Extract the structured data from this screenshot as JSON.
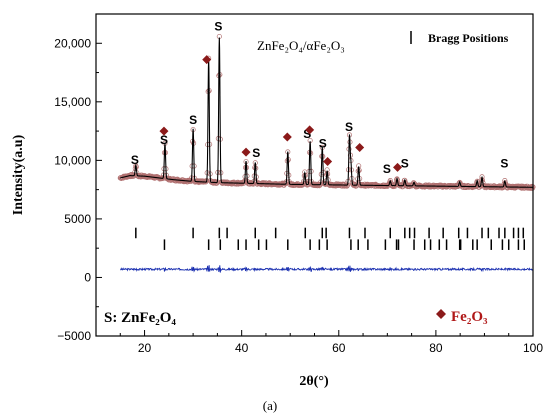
{
  "chart_data": {
    "type": "line",
    "xlabel": "2θ(°)",
    "ylabel": "Intensity(a.u)",
    "xlim": [
      10,
      100
    ],
    "ylim": [
      -5000,
      22500
    ],
    "x_ticks": [
      20,
      40,
      60,
      80,
      100
    ],
    "y_ticks": [
      -5000,
      0,
      5000,
      10000,
      15000,
      20000
    ],
    "y_tick_labels": [
      "−5000",
      "0",
      "5000",
      "10,000",
      "15,000",
      "20,000"
    ],
    "x_minor_step": 5,
    "y_minor_step": 2500,
    "grid": false,
    "colors": {
      "observed": "#b07070",
      "calculated": "#000000",
      "difference": "#1a2fb0",
      "bragg": "#000000",
      "fe_marker": "#8b1a1a",
      "fe_text": "#b01818"
    },
    "annotation": "ZnFe₂O₄/αFe₂O₃",
    "legend": {
      "label": "Bragg Positions",
      "placement": "top-right"
    },
    "key_s": "S: ZnFe₂O₄",
    "key_fe": "Fe₂O₃",
    "background_points": [
      [
        15,
        8500
      ],
      [
        17,
        8700
      ],
      [
        20,
        8650
      ],
      [
        23,
        8500
      ],
      [
        26,
        8350
      ],
      [
        30,
        8200
      ],
      [
        35,
        8100
      ],
      [
        40,
        8050
      ],
      [
        50,
        7950
      ],
      [
        60,
        7900
      ],
      [
        70,
        7850
      ],
      [
        80,
        7800
      ],
      [
        90,
        7750
      ],
      [
        100,
        7700
      ]
    ],
    "zn_peaks": [
      {
        "pos": 18.2,
        "height": 900
      },
      {
        "pos": 30.0,
        "height": 4500
      },
      {
        "pos": 35.4,
        "height": 12400
      },
      {
        "pos": 42.8,
        "height": 1800
      },
      {
        "pos": 53.0,
        "height": 1000
      },
      {
        "pos": 56.6,
        "height": 3200
      },
      {
        "pos": 62.2,
        "height": 4200
      },
      {
        "pos": 70.6,
        "height": 400
      },
      {
        "pos": 73.6,
        "height": 500
      },
      {
        "pos": 89.5,
        "height": 800
      },
      {
        "pos": 94.2,
        "height": 500
      }
    ],
    "fe_peaks": [
      {
        "pos": 24.2,
        "height": 3000
      },
      {
        "pos": 33.2,
        "height": 10500
      },
      {
        "pos": 40.9,
        "height": 1900
      },
      {
        "pos": 49.5,
        "height": 2800
      },
      {
        "pos": 54.1,
        "height": 3700
      },
      {
        "pos": 57.6,
        "height": 1200
      },
      {
        "pos": 62.5,
        "height": 1800
      },
      {
        "pos": 64.1,
        "height": 1600
      },
      {
        "pos": 72.0,
        "height": 600
      },
      {
        "pos": 75.5,
        "height": 300
      },
      {
        "pos": 84.9,
        "height": 400
      },
      {
        "pos": 88.5,
        "height": 500
      }
    ],
    "s_labels": [
      {
        "x": 18.0,
        "y": 9700,
        "text": "S"
      },
      {
        "x": 24.0,
        "y": 11400,
        "text": "S"
      },
      {
        "x": 30.0,
        "y": 13100,
        "text": "S"
      },
      {
        "x": 35.2,
        "y": 21100,
        "text": "S"
      },
      {
        "x": 43.0,
        "y": 10300,
        "text": "S"
      },
      {
        "x": 53.5,
        "y": 11900,
        "text": "S"
      },
      {
        "x": 56.7,
        "y": 11100,
        "text": "S"
      },
      {
        "x": 62.1,
        "y": 12500,
        "text": "S"
      },
      {
        "x": 69.9,
        "y": 8900,
        "text": "S"
      },
      {
        "x": 73.6,
        "y": 9400,
        "text": "S"
      },
      {
        "x": 94.1,
        "y": 9400,
        "text": "S"
      }
    ],
    "fe_markers": [
      {
        "x": 24.0,
        "y": 12500
      },
      {
        "x": 32.8,
        "y": 18600
      },
      {
        "x": 40.9,
        "y": 10700
      },
      {
        "x": 49.4,
        "y": 12000
      },
      {
        "x": 54.0,
        "y": 12600
      },
      {
        "x": 57.7,
        "y": 9900
      },
      {
        "x": 64.3,
        "y": 11100
      },
      {
        "x": 72.1,
        "y": 9400
      }
    ],
    "bragg_row1": [
      18.2,
      30.0,
      35.4,
      37.0,
      42.8,
      47.0,
      53.1,
      56.6,
      57.4,
      62.2,
      65.4,
      70.6,
      73.6,
      74.6,
      75.6,
      78.6,
      81.5,
      84.7,
      86.5,
      89.5,
      90.8,
      93.0,
      94.2,
      96.0,
      97.0,
      98.0
    ],
    "bragg_row2": [
      24.1,
      33.2,
      35.6,
      39.3,
      40.9,
      43.5,
      45.1,
      49.5,
      54.1,
      56.0,
      57.6,
      62.5,
      64.0,
      66.0,
      69.6,
      71.9,
      72.3,
      75.5,
      77.7,
      78.9,
      80.7,
      82.2,
      84.9,
      85.1,
      87.6,
      88.5,
      91.4,
      93.7,
      95.0,
      97.0,
      98.2
    ],
    "bragg_row1_y": 3800,
    "bragg_row2_y": 2800,
    "bragg_tick_height": 900,
    "difference_baseline": 700
  },
  "caption": "(a)"
}
